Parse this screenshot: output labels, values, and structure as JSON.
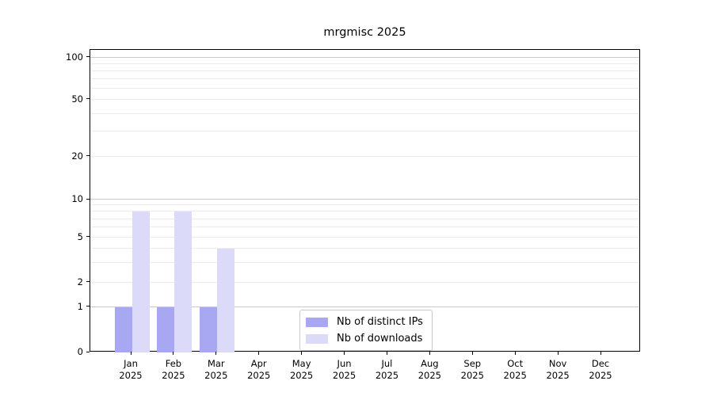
{
  "chart_data": {
    "type": "bar",
    "title": "mrgmisc 2025",
    "categories": [
      "Jan",
      "Feb",
      "Mar",
      "Apr",
      "May",
      "Jun",
      "Jul",
      "Aug",
      "Sep",
      "Oct",
      "Nov",
      "Dec"
    ],
    "category_year": "2025",
    "series": [
      {
        "name": "Nb of distinct IPs",
        "key": "distinct-ips",
        "color": "#a8a8f2",
        "values": [
          1,
          1,
          1,
          0,
          0,
          0,
          0,
          0,
          0,
          0,
          0,
          0
        ]
      },
      {
        "name": "Nb of downloads",
        "key": "downloads",
        "color": "#dbdbf9",
        "values": [
          8,
          8,
          4,
          0,
          0,
          0,
          0,
          0,
          0,
          0,
          0,
          0
        ]
      }
    ],
    "yaxis": {
      "scale": "log-like",
      "tick_values": [
        0,
        1,
        2,
        5,
        10,
        20,
        50,
        100
      ],
      "major_gridlines": [
        1,
        10,
        100
      ],
      "minor_gridlines": [
        2,
        3,
        4,
        5,
        6,
        7,
        8,
        9,
        20,
        30,
        40,
        50,
        60,
        70,
        80,
        90
      ],
      "range_bottom": 0,
      "range_top": 113
    },
    "xaxis": {
      "label_lines_per_tick": 2
    },
    "legend": {
      "position": "bottom-center"
    },
    "colors": {
      "background": "#ffffff",
      "spine": "#000000",
      "text": "#000000",
      "major_gridline": "#c9c9c9",
      "minor_gridline": "#ececec",
      "legend_border": "#c8c8c8"
    }
  }
}
